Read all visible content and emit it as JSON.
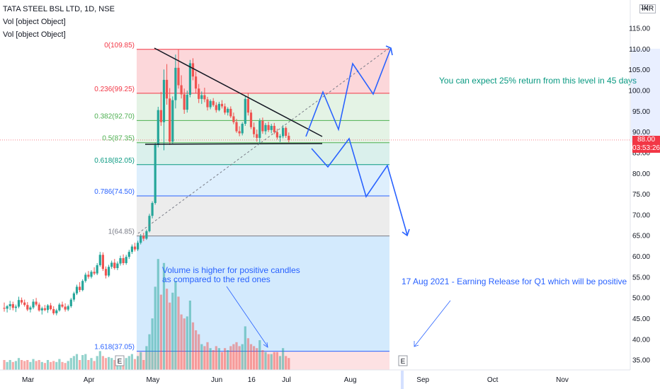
{
  "chart_data": {
    "type": "candlestick",
    "title": "TATA STEEL BSL LTD, 1D, NSE",
    "legend_lines": [
      "Vol [object Object]",
      "Vol [object Object]"
    ],
    "currency": "INR",
    "y_top_label": "12",
    "ylim": [
      32,
      120
    ],
    "y_ticks": [
      "115.00",
      "110.00",
      "105.00",
      "100.00",
      "95.00",
      "90.00",
      "85.00",
      "80.00",
      "75.00",
      "70.00",
      "65.00",
      "60.00",
      "55.00",
      "50.00",
      "45.00",
      "40.00",
      "35.00"
    ],
    "y_tick_values": [
      115,
      110,
      105,
      100,
      95,
      90,
      85,
      80,
      75,
      70,
      65,
      60,
      55,
      50,
      45,
      40,
      35
    ],
    "x_ticks": [
      "Mar",
      "Apr",
      "May",
      "Jun",
      "16",
      "Jul",
      "Aug",
      "Sep",
      "Oct",
      "Nov"
    ],
    "x_tick_index": [
      6,
      27,
      49,
      71,
      83,
      95,
      117,
      142,
      166,
      190
    ],
    "last_price": "88.00",
    "countdown": "03:53:26",
    "fib_levels": [
      {
        "label": "0(109.85)",
        "value": 109.85,
        "color": "#f23645"
      },
      {
        "label": "0.236(99.25)",
        "value": 99.25,
        "color": "#f23645"
      },
      {
        "label": "0.382(92.70)",
        "value": 92.7,
        "color": "#4caf50"
      },
      {
        "label": "0.5(87.35)",
        "value": 87.35,
        "color": "#4caf50"
      },
      {
        "label": "0.618(82.05)",
        "value": 82.05,
        "color": "#089981"
      },
      {
        "label": "0.786(74.50)",
        "value": 74.5,
        "color": "#2962ff"
      },
      {
        "label": "1(64.85)",
        "value": 64.85,
        "color": "#787b86"
      },
      {
        "label": "1.618(37.05)",
        "value": 37.05,
        "color": "#2962ff"
      }
    ],
    "fib_colors": {
      "zone1": "#f2364533",
      "zone2": "#4caf5026",
      "zone3": "#08998126",
      "zone4": "#2196f326",
      "zone5": "#9e9e9e33",
      "zone6": "#2196f333",
      "zone_ext": "#f2364526"
    },
    "annotations": [
      {
        "text": "You can expect 25% return from this level in 45 days",
        "color": "#089981"
      },
      {
        "text": "Volume is higher for positive candles",
        "color": "#2962ff"
      },
      {
        "text": "as compared to the red ones",
        "color": "#2962ff"
      },
      {
        "text": "17 Aug 2021 - Earning Release for Q1 which will be positive",
        "color": "#2962ff"
      }
    ],
    "event_marker": "E",
    "colors": {
      "up": "#26a69a",
      "down": "#ef5350",
      "projection": "#2962ff",
      "trendline": "#131722"
    },
    "candles": [
      {
        "o": 47.5,
        "h": 48.8,
        "l": 46.6,
        "c": 47.3,
        "v": 0.5
      },
      {
        "o": 47.3,
        "h": 48.2,
        "l": 46.4,
        "c": 47.9,
        "v": 0.4
      },
      {
        "o": 47.9,
        "h": 49.2,
        "l": 47.0,
        "c": 48.4,
        "v": 0.5
      },
      {
        "o": 48.4,
        "h": 49.0,
        "l": 46.9,
        "c": 47.5,
        "v": 0.4
      },
      {
        "o": 47.5,
        "h": 48.3,
        "l": 46.5,
        "c": 47.8,
        "v": 0.45
      },
      {
        "o": 47.8,
        "h": 50.2,
        "l": 47.4,
        "c": 49.4,
        "v": 0.6
      },
      {
        "o": 49.4,
        "h": 50.0,
        "l": 48.3,
        "c": 48.8,
        "v": 0.5
      },
      {
        "o": 48.8,
        "h": 49.5,
        "l": 47.8,
        "c": 48.2,
        "v": 0.45
      },
      {
        "o": 48.2,
        "h": 48.9,
        "l": 46.7,
        "c": 47.1,
        "v": 0.5
      },
      {
        "o": 47.1,
        "h": 48.0,
        "l": 46.4,
        "c": 47.6,
        "v": 0.4
      },
      {
        "o": 47.6,
        "h": 49.6,
        "l": 47.2,
        "c": 49.0,
        "v": 0.55
      },
      {
        "o": 49.0,
        "h": 49.9,
        "l": 47.9,
        "c": 48.3,
        "v": 0.45
      },
      {
        "o": 48.3,
        "h": 48.8,
        "l": 46.6,
        "c": 46.9,
        "v": 0.5
      },
      {
        "o": 46.9,
        "h": 47.8,
        "l": 45.9,
        "c": 47.4,
        "v": 0.4
      },
      {
        "o": 47.4,
        "h": 48.2,
        "l": 46.7,
        "c": 47.0,
        "v": 0.35
      },
      {
        "o": 47.0,
        "h": 48.4,
        "l": 46.3,
        "c": 48.1,
        "v": 0.5
      },
      {
        "o": 48.1,
        "h": 48.7,
        "l": 46.9,
        "c": 47.2,
        "v": 0.4
      },
      {
        "o": 47.2,
        "h": 47.9,
        "l": 45.8,
        "c": 46.2,
        "v": 0.45
      },
      {
        "o": 46.2,
        "h": 47.3,
        "l": 45.7,
        "c": 46.9,
        "v": 0.4
      },
      {
        "o": 46.9,
        "h": 48.7,
        "l": 46.6,
        "c": 48.3,
        "v": 0.55
      },
      {
        "o": 48.3,
        "h": 49.0,
        "l": 47.5,
        "c": 47.8,
        "v": 0.4
      },
      {
        "o": 47.8,
        "h": 48.6,
        "l": 46.6,
        "c": 47.1,
        "v": 0.35
      },
      {
        "o": 47.1,
        "h": 48.3,
        "l": 46.7,
        "c": 47.9,
        "v": 0.45
      },
      {
        "o": 47.9,
        "h": 49.9,
        "l": 47.5,
        "c": 49.5,
        "v": 0.6
      },
      {
        "o": 49.5,
        "h": 51.4,
        "l": 49.0,
        "c": 51.0,
        "v": 0.7
      },
      {
        "o": 51.0,
        "h": 53.1,
        "l": 50.6,
        "c": 52.6,
        "v": 0.8
      },
      {
        "o": 52.6,
        "h": 53.7,
        "l": 51.3,
        "c": 51.8,
        "v": 0.5
      },
      {
        "o": 51.8,
        "h": 54.4,
        "l": 51.5,
        "c": 54.0,
        "v": 0.75
      },
      {
        "o": 54.0,
        "h": 56.0,
        "l": 53.6,
        "c": 55.5,
        "v": 0.8
      },
      {
        "o": 55.5,
        "h": 56.4,
        "l": 54.5,
        "c": 55.0,
        "v": 0.5
      },
      {
        "o": 55.0,
        "h": 56.6,
        "l": 54.6,
        "c": 56.2,
        "v": 0.6
      },
      {
        "o": 56.2,
        "h": 57.3,
        "l": 55.4,
        "c": 55.8,
        "v": 0.45
      },
      {
        "o": 55.8,
        "h": 58.3,
        "l": 55.4,
        "c": 57.8,
        "v": 0.7
      },
      {
        "o": 57.8,
        "h": 61.0,
        "l": 57.4,
        "c": 60.3,
        "v": 0.95
      },
      {
        "o": 60.3,
        "h": 60.9,
        "l": 56.4,
        "c": 56.9,
        "v": 0.7
      },
      {
        "o": 56.9,
        "h": 57.5,
        "l": 54.6,
        "c": 55.3,
        "v": 0.6
      },
      {
        "o": 55.3,
        "h": 57.9,
        "l": 54.9,
        "c": 57.4,
        "v": 0.65
      },
      {
        "o": 57.4,
        "h": 58.9,
        "l": 56.9,
        "c": 58.4,
        "v": 0.6
      },
      {
        "o": 58.4,
        "h": 59.3,
        "l": 56.7,
        "c": 57.1,
        "v": 0.5
      },
      {
        "o": 57.1,
        "h": 58.7,
        "l": 56.6,
        "c": 58.2,
        "v": 0.55
      },
      {
        "o": 58.2,
        "h": 60.1,
        "l": 57.7,
        "c": 59.5,
        "v": 0.65
      },
      {
        "o": 59.5,
        "h": 60.4,
        "l": 57.8,
        "c": 58.3,
        "v": 0.5
      },
      {
        "o": 58.3,
        "h": 60.3,
        "l": 57.9,
        "c": 59.8,
        "v": 0.6
      },
      {
        "o": 59.8,
        "h": 61.5,
        "l": 59.3,
        "c": 61.0,
        "v": 0.7
      },
      {
        "o": 61.0,
        "h": 62.8,
        "l": 60.5,
        "c": 62.3,
        "v": 0.8
      },
      {
        "o": 62.3,
        "h": 63.2,
        "l": 61.1,
        "c": 61.6,
        "v": 0.55
      },
      {
        "o": 61.6,
        "h": 63.7,
        "l": 61.2,
        "c": 63.2,
        "v": 0.7
      },
      {
        "o": 63.2,
        "h": 65.3,
        "l": 62.8,
        "c": 64.8,
        "v": 0.9
      },
      {
        "o": 64.8,
        "h": 65.6,
        "l": 63.6,
        "c": 64.2,
        "v": 0.5
      },
      {
        "o": 64.2,
        "h": 66.4,
        "l": 63.9,
        "c": 66.0,
        "v": 1.2
      },
      {
        "o": 66.0,
        "h": 70.2,
        "l": 65.7,
        "c": 69.7,
        "v": 1.8
      },
      {
        "o": 69.7,
        "h": 73.2,
        "l": 69.1,
        "c": 72.8,
        "v": 2.6
      },
      {
        "o": 72.8,
        "h": 87.3,
        "l": 72.4,
        "c": 86.8,
        "v": 4.2
      },
      {
        "o": 86.8,
        "h": 96.0,
        "l": 86.2,
        "c": 95.2,
        "v": 5.6
      },
      {
        "o": 95.2,
        "h": 99.6,
        "l": 91.4,
        "c": 92.3,
        "v": 3.8
      },
      {
        "o": 92.3,
        "h": 105.0,
        "l": 85.5,
        "c": 102.5,
        "v": 5.4
      },
      {
        "o": 102.5,
        "h": 106.3,
        "l": 96.5,
        "c": 98.0,
        "v": 4.1
      },
      {
        "o": 98.0,
        "h": 100.5,
        "l": 86.8,
        "c": 87.6,
        "v": 3.4
      },
      {
        "o": 87.6,
        "h": 98.5,
        "l": 86.9,
        "c": 97.6,
        "v": 3.9
      },
      {
        "o": 97.6,
        "h": 108.6,
        "l": 95.6,
        "c": 105.4,
        "v": 4.5
      },
      {
        "o": 105.4,
        "h": 109.85,
        "l": 100.4,
        "c": 101.2,
        "v": 3.7
      },
      {
        "o": 101.2,
        "h": 103.6,
        "l": 98.0,
        "c": 99.0,
        "v": 2.8
      },
      {
        "o": 99.0,
        "h": 100.4,
        "l": 94.3,
        "c": 95.3,
        "v": 2.6
      },
      {
        "o": 95.3,
        "h": 99.9,
        "l": 94.6,
        "c": 98.9,
        "v": 2.7
      },
      {
        "o": 98.9,
        "h": 107.3,
        "l": 98.3,
        "c": 106.5,
        "v": 3.5
      },
      {
        "o": 106.5,
        "h": 107.7,
        "l": 102.4,
        "c": 103.3,
        "v": 2.4
      },
      {
        "o": 103.3,
        "h": 104.6,
        "l": 99.3,
        "c": 100.4,
        "v": 2.0
      },
      {
        "o": 100.4,
        "h": 101.5,
        "l": 96.9,
        "c": 97.9,
        "v": 1.8
      },
      {
        "o": 97.9,
        "h": 99.7,
        "l": 96.7,
        "c": 98.8,
        "v": 1.3
      },
      {
        "o": 98.8,
        "h": 100.6,
        "l": 97.1,
        "c": 97.8,
        "v": 1.2
      },
      {
        "o": 97.8,
        "h": 98.4,
        "l": 95.1,
        "c": 95.9,
        "v": 1.4
      },
      {
        "o": 95.9,
        "h": 97.8,
        "l": 95.4,
        "c": 97.4,
        "v": 1.1
      },
      {
        "o": 97.4,
        "h": 98.1,
        "l": 96.0,
        "c": 96.4,
        "v": 1.0
      },
      {
        "o": 96.4,
        "h": 97.1,
        "l": 94.6,
        "c": 95.2,
        "v": 1.2
      },
      {
        "o": 95.2,
        "h": 97.2,
        "l": 94.9,
        "c": 96.7,
        "v": 1.1
      },
      {
        "o": 96.7,
        "h": 97.6,
        "l": 95.6,
        "c": 96.1,
        "v": 0.9
      },
      {
        "o": 96.1,
        "h": 96.8,
        "l": 94.1,
        "c": 94.6,
        "v": 1.1
      },
      {
        "o": 94.6,
        "h": 95.9,
        "l": 93.9,
        "c": 95.5,
        "v": 1.0
      },
      {
        "o": 95.5,
        "h": 96.1,
        "l": 93.3,
        "c": 93.7,
        "v": 1.2
      },
      {
        "o": 93.7,
        "h": 94.6,
        "l": 91.8,
        "c": 92.3,
        "v": 1.3
      },
      {
        "o": 92.3,
        "h": 93.1,
        "l": 89.7,
        "c": 90.1,
        "v": 1.4
      },
      {
        "o": 90.1,
        "h": 91.3,
        "l": 88.9,
        "c": 89.6,
        "v": 1.2
      },
      {
        "o": 89.6,
        "h": 92.3,
        "l": 89.1,
        "c": 91.9,
        "v": 1.3
      },
      {
        "o": 91.9,
        "h": 98.5,
        "l": 91.4,
        "c": 97.9,
        "v": 2.2
      },
      {
        "o": 97.9,
        "h": 99.4,
        "l": 93.9,
        "c": 94.6,
        "v": 1.6
      },
      {
        "o": 94.6,
        "h": 95.3,
        "l": 90.6,
        "c": 91.1,
        "v": 1.3
      },
      {
        "o": 91.1,
        "h": 92.2,
        "l": 88.6,
        "c": 89.4,
        "v": 1.2
      },
      {
        "o": 89.4,
        "h": 90.5,
        "l": 87.6,
        "c": 88.5,
        "v": 1.1
      },
      {
        "o": 88.5,
        "h": 93.2,
        "l": 87.2,
        "c": 92.6,
        "v": 1.5
      },
      {
        "o": 92.6,
        "h": 93.4,
        "l": 89.5,
        "c": 90.1,
        "v": 1.0
      },
      {
        "o": 90.1,
        "h": 92.1,
        "l": 89.3,
        "c": 91.6,
        "v": 0.9
      },
      {
        "o": 91.6,
        "h": 92.4,
        "l": 89.9,
        "c": 90.4,
        "v": 0.8
      },
      {
        "o": 90.4,
        "h": 91.9,
        "l": 89.6,
        "c": 91.4,
        "v": 0.8
      },
      {
        "o": 91.4,
        "h": 92.1,
        "l": 89.4,
        "c": 89.9,
        "v": 0.9
      },
      {
        "o": 89.9,
        "h": 90.7,
        "l": 88.1,
        "c": 88.6,
        "v": 0.9
      },
      {
        "o": 88.6,
        "h": 89.4,
        "l": 87.5,
        "c": 88.9,
        "v": 0.7
      },
      {
        "o": 88.9,
        "h": 91.6,
        "l": 88.4,
        "c": 90.9,
        "v": 1.1
      },
      {
        "o": 90.9,
        "h": 91.3,
        "l": 88.5,
        "c": 89.0,
        "v": 0.7
      },
      {
        "o": 89.0,
        "h": 89.8,
        "l": 87.4,
        "c": 88.0,
        "v": 0.6
      }
    ]
  }
}
